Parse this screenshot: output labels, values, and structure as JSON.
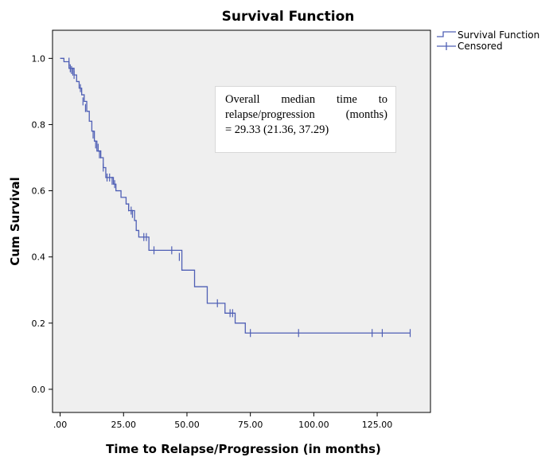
{
  "chart_data": {
    "type": "line",
    "title": "Survival Function",
    "xlabel": "Time to Relapse/Progression (in months)",
    "ylabel": "Cum Survival",
    "xlim": [
      -3,
      146
    ],
    "ylim": [
      -0.07,
      1.085
    ],
    "x_ticks": [
      0,
      25,
      50,
      75,
      100,
      125
    ],
    "x_tick_labels": [
      ".00",
      "25.00",
      "50.00",
      "75.00",
      "100.00",
      "125.00"
    ],
    "y_ticks": [
      0.0,
      0.2,
      0.4,
      0.6,
      0.8,
      1.0
    ],
    "y_tick_labels": [
      "0.0",
      "0.2",
      "0.4",
      "0.6",
      "0.8",
      "1.0"
    ],
    "legend": {
      "position": "outside-top-right",
      "entries": [
        {
          "label": "Survival Function"
        },
        {
          "label": "Censored"
        }
      ]
    },
    "annotation_lines": [
      "Overall median time to",
      "relapse/progression (months)",
      "= 29.33 (21.36, 37.29)"
    ],
    "grid": false,
    "colors": {
      "line": "#4f5fb5",
      "plot_bg": "#efefef",
      "annot_border": "#d8d8d8"
    },
    "series": [
      {
        "name": "Survival Function",
        "steps": [
          [
            0,
            1.0
          ],
          [
            1.5,
            0.99
          ],
          [
            3.5,
            0.97
          ],
          [
            5.5,
            0.95
          ],
          [
            6.5,
            0.93
          ],
          [
            7.5,
            0.91
          ],
          [
            8.5,
            0.89
          ],
          [
            9.5,
            0.87
          ],
          [
            10.5,
            0.84
          ],
          [
            11.5,
            0.81
          ],
          [
            12.5,
            0.78
          ],
          [
            13.5,
            0.75
          ],
          [
            14.5,
            0.72
          ],
          [
            16,
            0.7
          ],
          [
            17,
            0.67
          ],
          [
            18,
            0.64
          ],
          [
            21,
            0.62
          ],
          [
            22,
            0.6
          ],
          [
            24,
            0.58
          ],
          [
            26,
            0.56
          ],
          [
            27,
            0.54
          ],
          [
            29.33,
            0.51
          ],
          [
            30,
            0.48
          ],
          [
            31,
            0.46
          ],
          [
            35,
            0.42
          ],
          [
            48,
            0.36
          ],
          [
            53,
            0.31
          ],
          [
            58,
            0.26
          ],
          [
            65,
            0.23
          ],
          [
            69,
            0.2
          ],
          [
            73,
            0.17
          ],
          [
            138,
            0.17
          ]
        ]
      },
      {
        "name": "Censored",
        "points": [
          [
            3.5,
            0.99
          ],
          [
            4,
            0.97
          ],
          [
            4.5,
            0.965
          ],
          [
            5,
            0.96
          ],
          [
            5.5,
            0.95
          ],
          [
            8,
            0.91
          ],
          [
            9,
            0.87
          ],
          [
            10,
            0.85
          ],
          [
            13,
            0.77
          ],
          [
            14,
            0.74
          ],
          [
            15,
            0.73
          ],
          [
            15.5,
            0.71
          ],
          [
            16,
            0.71
          ],
          [
            17,
            0.67
          ],
          [
            18.5,
            0.64
          ],
          [
            19.5,
            0.64
          ],
          [
            20.5,
            0.63
          ],
          [
            21.5,
            0.62
          ],
          [
            27,
            0.55
          ],
          [
            28,
            0.54
          ],
          [
            28.5,
            0.53
          ],
          [
            33,
            0.46
          ],
          [
            34,
            0.46
          ],
          [
            37,
            0.42
          ],
          [
            44,
            0.42
          ],
          [
            47,
            0.4
          ],
          [
            62,
            0.26
          ],
          [
            67,
            0.23
          ],
          [
            68,
            0.23
          ],
          [
            75,
            0.17
          ],
          [
            94,
            0.17
          ],
          [
            123,
            0.17
          ],
          [
            127,
            0.17
          ],
          [
            138,
            0.17
          ]
        ]
      }
    ]
  }
}
